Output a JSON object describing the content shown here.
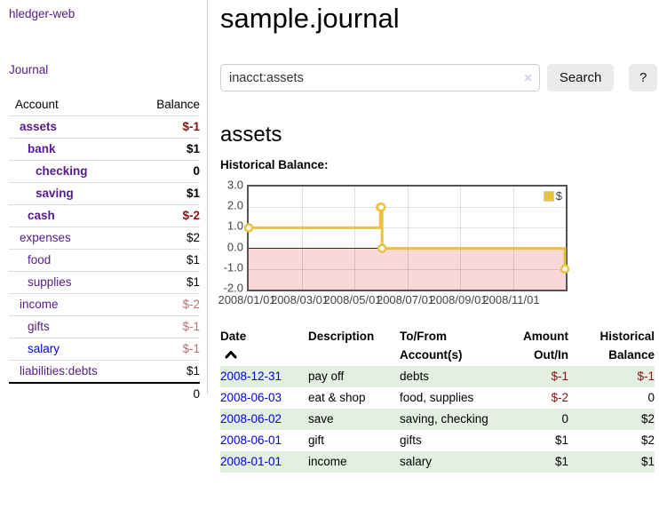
{
  "sidebar": {
    "app_title": "hledger-web",
    "nav_journal": "Journal",
    "accounts_table": {
      "headers": {
        "account": "Account",
        "balance": "Balance"
      },
      "rows": [
        {
          "account": "assets",
          "balance": "$-1",
          "level": 0,
          "bold": true,
          "balance_color": "neg-strong"
        },
        {
          "account": "bank",
          "balance": "$1",
          "level": 1,
          "bold": true,
          "balance_color": ""
        },
        {
          "account": "checking",
          "balance": "0",
          "level": 2,
          "bold": true,
          "balance_color": ""
        },
        {
          "account": "saving",
          "balance": "$1",
          "level": 2,
          "bold": true,
          "balance_color": ""
        },
        {
          "account": "cash",
          "balance": "$-2",
          "level": 1,
          "bold": true,
          "balance_color": "neg-strong"
        },
        {
          "account": "expenses",
          "balance": "$2",
          "level": 0,
          "bold": false,
          "balance_color": ""
        },
        {
          "account": "food",
          "balance": "$1",
          "level": 1,
          "bold": false,
          "balance_color": ""
        },
        {
          "account": "supplies",
          "balance": "$1",
          "level": 1,
          "bold": false,
          "balance_color": ""
        },
        {
          "account": "income",
          "balance": "$-2",
          "level": 0,
          "bold": false,
          "balance_color": "neg-soft"
        },
        {
          "account": "gifts",
          "balance": "$-1",
          "level": 1,
          "bold": false,
          "balance_color": "neg-soft"
        },
        {
          "account": "salary",
          "balance": "$-1",
          "level": 1,
          "bold": false,
          "balance_color": "neg-soft",
          "link_color": "blue"
        },
        {
          "account": "liabilities:debts",
          "balance": "$1",
          "level": 0,
          "bold": false,
          "balance_color": ""
        }
      ],
      "total": "0"
    }
  },
  "header": {
    "title": "sample.journal"
  },
  "search": {
    "value": "inacct:assets",
    "clear_icon": "×",
    "button_label": "Search",
    "help_label": "?"
  },
  "account_page": {
    "heading": "assets",
    "chart_label": "Historical Balance:"
  },
  "chart_data": {
    "type": "line",
    "style": "step",
    "title": "Historical Balance",
    "series": [
      {
        "name": "$",
        "color": "#e8c240",
        "points": [
          {
            "x": "2008-01-01",
            "y": 1
          },
          {
            "x": "2008-06-01",
            "y": 2
          },
          {
            "x": "2008-06-02",
            "y": 2
          },
          {
            "x": "2008-06-03",
            "y": 0
          },
          {
            "x": "2008-12-31",
            "y": -1
          }
        ]
      }
    ],
    "xrange": [
      "2008-01-01",
      "2009-01-01"
    ],
    "ylim": [
      -2,
      3
    ],
    "yticks": [
      "3.0",
      "2.0",
      "1.0",
      "0.0",
      "-1.0",
      "-2.0"
    ],
    "xticks": [
      "2008/01/01",
      "2008/03/01",
      "2008/05/01",
      "2008/07/01",
      "2008/09/01",
      "2008/11/01"
    ],
    "grid": true,
    "legend": {
      "label": "$",
      "position": "top-right"
    },
    "negative_region_color": "#fbd8d8",
    "zero_line_color": "#8b0000"
  },
  "register_table": {
    "headers": {
      "date": "Date",
      "sort_icon": "chevron-up",
      "description": "Description",
      "account_line1": "To/From",
      "account_line2": "Account(s)",
      "amount_line1": "Amount",
      "amount_line2": "Out/In",
      "balance_line1": "Historical",
      "balance_line2": "Balance"
    },
    "rows": [
      {
        "date": "2008-12-31",
        "description": "pay off",
        "accounts": "debts",
        "amount": "$-1",
        "amount_negative": true,
        "balance": "$-1",
        "balance_negative": true
      },
      {
        "date": "2008-06-03",
        "description": "eat & shop",
        "accounts": "food, supplies",
        "amount": "$-2",
        "amount_negative": true,
        "balance": "0",
        "balance_negative": false
      },
      {
        "date": "2008-06-02",
        "description": "save",
        "accounts": "saving, checking",
        "amount": "0",
        "amount_negative": false,
        "balance": "$2",
        "balance_negative": false
      },
      {
        "date": "2008-06-01",
        "description": "gift",
        "accounts": "gifts",
        "amount": "$1",
        "amount_negative": false,
        "balance": "$2",
        "balance_negative": false
      },
      {
        "date": "2008-01-01",
        "description": "income",
        "accounts": "salary",
        "amount": "$1",
        "amount_negative": false,
        "balance": "$1",
        "balance_negative": false
      }
    ]
  },
  "colors": {
    "link_purple": "#551a8b",
    "link_blue": "#0000e0",
    "negative_strong": "#881111",
    "negative_soft": "#bb7070",
    "row_stripe_green": "#e3efe1",
    "chart_line_gold": "#e8c240",
    "chart_negative_fill": "#fbd8d8",
    "chart_zero_line": "#8b0000",
    "chart_border": "#545454",
    "button_bg": "#ebebeb"
  }
}
